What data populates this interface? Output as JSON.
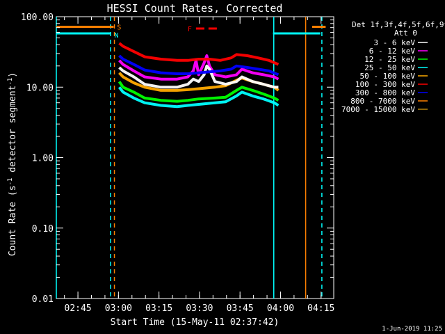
{
  "chart_data": {
    "type": "line",
    "title": "HESSI Count Rates, Corrected",
    "xlabel": "Start Time (15-May-11 02:37:42)",
    "ylabel_parts": [
      "Count Rate (s",
      "-1",
      " detector segment",
      "-1",
      ")"
    ],
    "y_scale": "log",
    "ylim": [
      0.01,
      100
    ],
    "y_ticks": [
      {
        "value": 100,
        "label": "100.00"
      },
      {
        "value": 10,
        "label": "10.00"
      },
      {
        "value": 1,
        "label": "1.00"
      },
      {
        "value": 0.1,
        "label": "0.10"
      },
      {
        "value": 0.01,
        "label": "0.01"
      }
    ],
    "x_ticks": [
      {
        "value": 7.3,
        "label": "02:45"
      },
      {
        "value": 22.3,
        "label": "03:00"
      },
      {
        "value": 37.3,
        "label": "03:15"
      },
      {
        "value": 52.3,
        "label": "03:30"
      },
      {
        "value": 67.3,
        "label": "03:45"
      },
      {
        "value": 82.3,
        "label": "04:00"
      },
      {
        "value": 97.3,
        "label": "04:15"
      }
    ],
    "xlim": [
      -0.7,
      102
    ],
    "x_unit": "minutes since 02:37:42",
    "legend": {
      "title_lines": [
        "Det 1f,3f,4f,5f,6f,9f,",
        "Att 0"
      ],
      "placement": "right"
    },
    "series": [
      {
        "name": "3 - 6 keV",
        "color": "#ffffff",
        "points": [
          [
            22.6,
            19
          ],
          [
            24,
            17
          ],
          [
            28,
            14
          ],
          [
            32,
            11
          ],
          [
            38,
            10
          ],
          [
            44,
            10
          ],
          [
            48,
            11
          ],
          [
            50,
            13
          ],
          [
            52,
            12
          ],
          [
            54,
            15
          ],
          [
            55,
            20
          ],
          [
            56,
            18
          ],
          [
            58,
            12
          ],
          [
            62,
            11
          ],
          [
            66,
            12
          ],
          [
            68,
            14
          ],
          [
            72,
            12
          ],
          [
            76,
            11
          ],
          [
            80,
            10
          ],
          [
            81.5,
            10
          ]
        ]
      },
      {
        "name": "6 - 12 keV",
        "color": "#ff00ff",
        "points": [
          [
            22.6,
            24
          ],
          [
            24,
            21
          ],
          [
            28,
            17
          ],
          [
            32,
            14
          ],
          [
            38,
            13
          ],
          [
            44,
            13
          ],
          [
            48,
            14
          ],
          [
            50,
            17
          ],
          [
            51,
            24
          ],
          [
            52,
            15
          ],
          [
            54,
            22
          ],
          [
            55,
            28
          ],
          [
            56,
            20
          ],
          [
            58,
            15
          ],
          [
            62,
            14
          ],
          [
            66,
            15
          ],
          [
            68,
            18
          ],
          [
            72,
            16
          ],
          [
            76,
            15
          ],
          [
            80,
            14
          ],
          [
            81.5,
            13
          ]
        ]
      },
      {
        "name": "12 - 25 keV",
        "color": "#00ff00",
        "points": [
          [
            22.6,
            12
          ],
          [
            24,
            10
          ],
          [
            28,
            8.5
          ],
          [
            32,
            7
          ],
          [
            38,
            6.5
          ],
          [
            44,
            6.3
          ],
          [
            48,
            6.5
          ],
          [
            52,
            6.8
          ],
          [
            58,
            7
          ],
          [
            62,
            7.2
          ],
          [
            66,
            9
          ],
          [
            68,
            10
          ],
          [
            72,
            9
          ],
          [
            76,
            8
          ],
          [
            80,
            7
          ],
          [
            81.5,
            6.5
          ]
        ]
      },
      {
        "name": "25 - 50 keV",
        "color": "#00ffff",
        "points": [
          [
            22.6,
            10
          ],
          [
            24,
            8.5
          ],
          [
            28,
            7
          ],
          [
            32,
            6
          ],
          [
            38,
            5.5
          ],
          [
            44,
            5.3
          ],
          [
            48,
            5.5
          ],
          [
            52,
            5.7
          ],
          [
            58,
            6
          ],
          [
            62,
            6.2
          ],
          [
            66,
            7.5
          ],
          [
            68,
            8.5
          ],
          [
            72,
            7.5
          ],
          [
            76,
            6.8
          ],
          [
            80,
            6
          ],
          [
            81.5,
            5.5
          ]
        ]
      },
      {
        "name": "50 - 100 keV",
        "color": "#ffaa00",
        "points": [
          [
            22.6,
            16
          ],
          [
            24,
            14
          ],
          [
            28,
            11.5
          ],
          [
            32,
            10
          ],
          [
            38,
            9
          ],
          [
            44,
            9
          ],
          [
            48,
            9.2
          ],
          [
            52,
            9.5
          ],
          [
            58,
            10
          ],
          [
            62,
            10.5
          ],
          [
            66,
            12.5
          ],
          [
            68,
            13.5
          ],
          [
            72,
            12
          ],
          [
            76,
            11
          ],
          [
            80,
            10
          ],
          [
            81.5,
            9
          ]
        ]
      },
      {
        "name": "100 - 300 keV",
        "color": "#ff0000",
        "points": [
          [
            22.6,
            42
          ],
          [
            24,
            38
          ],
          [
            28,
            32
          ],
          [
            32,
            27
          ],
          [
            38,
            25
          ],
          [
            44,
            24
          ],
          [
            48,
            24
          ],
          [
            52,
            25
          ],
          [
            56,
            25
          ],
          [
            60,
            24
          ],
          [
            64,
            26
          ],
          [
            66,
            29
          ],
          [
            70,
            28
          ],
          [
            74,
            26
          ],
          [
            78,
            24
          ],
          [
            81.5,
            21
          ]
        ]
      },
      {
        "name": "300 - 800 keV",
        "color": "#0000ff",
        "points": [
          [
            22.6,
            28
          ],
          [
            24,
            25
          ],
          [
            28,
            21
          ],
          [
            32,
            17.5
          ],
          [
            38,
            16
          ],
          [
            44,
            15.5
          ],
          [
            48,
            15.5
          ],
          [
            52,
            16
          ],
          [
            56,
            16.5
          ],
          [
            60,
            17
          ],
          [
            64,
            18
          ],
          [
            66,
            20
          ],
          [
            70,
            19
          ],
          [
            74,
            18
          ],
          [
            78,
            17
          ],
          [
            81.5,
            15
          ]
        ]
      },
      {
        "name": "800 - 7000 keV",
        "color": "#ff8000",
        "points": []
      },
      {
        "name": "7000 - 15000 keV",
        "color": "#b8860b",
        "points": []
      }
    ],
    "annotations": {
      "flags": [
        {
          "label": "S",
          "color": "#ff8000",
          "x": [
            -0.7,
            20.5
          ],
          "level": 72
        },
        {
          "label": "N",
          "color": "#00ffff",
          "x": [
            -0.7,
            19.5
          ],
          "level": 58
        }
      ],
      "flag_right": [
        {
          "color": "#00ffff",
          "x": [
            79.5,
            97
          ],
          "level": 58
        },
        {
          "color": "#ff8000",
          "x": [
            94,
            99
          ],
          "level": 72
        }
      ],
      "flare_marker": {
        "label": "F",
        "color": "#ff0000",
        "x": [
          51,
          60
        ],
        "level": 68
      },
      "vlines": [
        {
          "x": -0.7,
          "color": "#00ffff",
          "dash": false
        },
        {
          "x": 19.4,
          "color": "#00ffff",
          "dash": true
        },
        {
          "x": 20.8,
          "color": "#ff8000",
          "dash": true
        },
        {
          "x": 79.8,
          "color": "#00ffff",
          "dash": false
        },
        {
          "x": 91.6,
          "color": "#ff8000",
          "dash": false
        },
        {
          "x": 97.6,
          "color": "#00ffff",
          "dash": true
        }
      ]
    }
  },
  "footer": {
    "timestamp": "1-Jun-2019 11:25"
  }
}
